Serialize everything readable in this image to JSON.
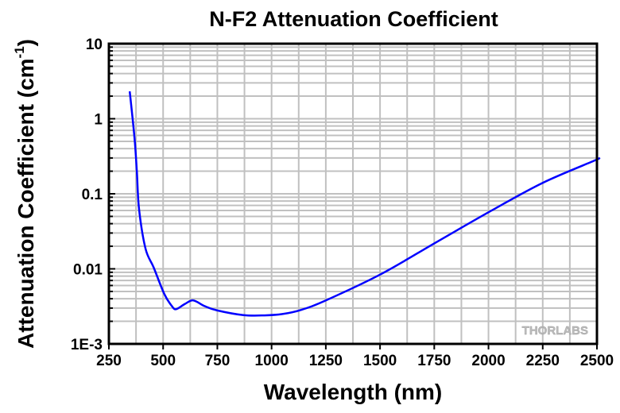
{
  "chart_data": {
    "type": "line",
    "title": "N-F2 Attenuation Coefficient",
    "xlabel": "Wavelength (nm)",
    "ylabel": "Attenuation Coefficient (cm",
    "ylabel_sup": "-1",
    "ylabel_close": ")",
    "xlim": [
      250,
      2500
    ],
    "ylim": [
      0.001,
      10
    ],
    "yscale": "log",
    "grid": true,
    "x_ticks": [
      250,
      500,
      750,
      1000,
      1250,
      1500,
      1750,
      2000,
      2250,
      2500
    ],
    "y_ticks": [
      {
        "value": 10,
        "label": "10"
      },
      {
        "value": 1,
        "label": "1"
      },
      {
        "value": 0.1,
        "label": "0.1"
      },
      {
        "value": 0.01,
        "label": "0.01"
      },
      {
        "value": 0.001,
        "label": "1E-3"
      }
    ],
    "series": [
      {
        "name": "N-F2",
        "color": "#0000ff",
        "x": [
          346,
          368,
          379,
          389,
          419,
          456,
          505,
          540,
          560,
          600,
          639,
          690,
          748,
          870,
          967,
          1050,
          1138,
          1250,
          1504,
          1759,
          2015,
          2250,
          2490,
          2500
        ],
        "y": [
          2.32,
          0.56,
          0.195,
          0.0625,
          0.0185,
          0.0105,
          0.00465,
          0.0032,
          0.0029,
          0.0034,
          0.0038,
          0.0032,
          0.0028,
          0.00242,
          0.0024,
          0.0025,
          0.00285,
          0.0038,
          0.0085,
          0.0226,
          0.06,
          0.14,
          0.278,
          0.29
        ]
      }
    ],
    "watermark": "THORLABS"
  }
}
